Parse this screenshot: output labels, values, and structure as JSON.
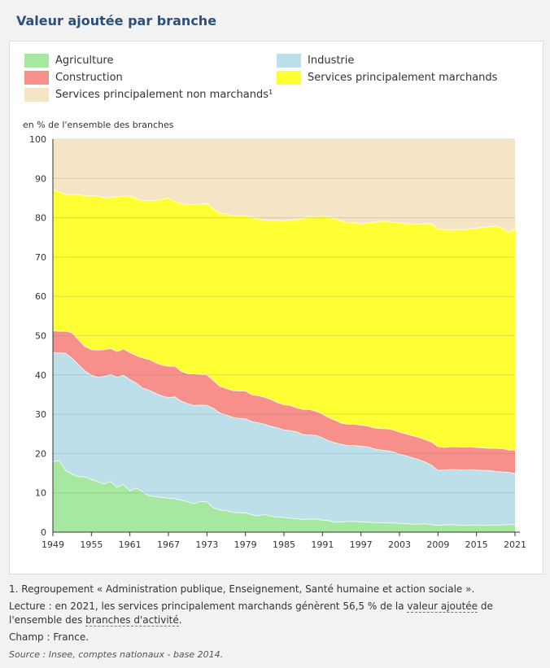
{
  "page": {
    "title": "Valeur ajoutée par branche"
  },
  "legend": [
    {
      "key": "agriculture",
      "label": "Agriculture",
      "color": "#a6e8a0"
    },
    {
      "key": "industrie",
      "label": "Industrie",
      "color": "#bddfe9"
    },
    {
      "key": "construction",
      "label": "Construction",
      "color": "#f7908a"
    },
    {
      "key": "services_marchands",
      "label": "Services principalement marchands",
      "color": "#ffff33"
    },
    {
      "key": "services_non_marchands",
      "label": "Services principalement non marchands¹",
      "color": "#f6e4c6"
    }
  ],
  "chart_data": {
    "type": "area",
    "stacked": true,
    "ylabel": "en % de l'ensemble des branches",
    "xlabel": "",
    "ylim": [
      0,
      100
    ],
    "yticks": [
      0,
      10,
      20,
      30,
      40,
      50,
      60,
      70,
      80,
      90,
      100
    ],
    "xlim": [
      1949,
      2021
    ],
    "xticks": [
      1949,
      1955,
      1961,
      1967,
      1973,
      1979,
      1985,
      1991,
      1997,
      2003,
      2009,
      2015,
      2021
    ],
    "grid": "horizontal",
    "legend_position": "top",
    "x": [
      1949,
      1950,
      1951,
      1952,
      1953,
      1954,
      1955,
      1956,
      1957,
      1958,
      1959,
      1960,
      1961,
      1962,
      1963,
      1964,
      1965,
      1966,
      1967,
      1968,
      1969,
      1970,
      1971,
      1972,
      1973,
      1974,
      1975,
      1976,
      1977,
      1978,
      1979,
      1980,
      1981,
      1982,
      1983,
      1984,
      1985,
      1986,
      1987,
      1988,
      1989,
      1990,
      1991,
      1992,
      1993,
      1994,
      1995,
      1996,
      1997,
      1998,
      1999,
      2000,
      2001,
      2002,
      2003,
      2004,
      2005,
      2006,
      2007,
      2008,
      2009,
      2010,
      2011,
      2012,
      2013,
      2014,
      2015,
      2016,
      2017,
      2018,
      2019,
      2020,
      2021
    ],
    "series": [
      {
        "name": "Agriculture",
        "values": [
          18.0,
          18.3,
          15.8,
          14.8,
          14.2,
          14.1,
          13.5,
          12.9,
          12.3,
          13.0,
          11.5,
          12.2,
          10.6,
          11.3,
          10.3,
          9.3,
          9.1,
          8.9,
          8.7,
          8.6,
          8.2,
          7.8,
          7.3,
          7.9,
          7.8,
          6.3,
          5.7,
          5.5,
          5.1,
          5.0,
          5.0,
          4.5,
          4.2,
          4.6,
          4.1,
          3.9,
          3.8,
          3.6,
          3.5,
          3.3,
          3.4,
          3.4,
          3.1,
          3.0,
          2.6,
          2.7,
          2.8,
          2.8,
          2.7,
          2.6,
          2.5,
          2.5,
          2.4,
          2.4,
          2.3,
          2.2,
          2.1,
          2.1,
          2.2,
          2.0,
          1.8,
          1.9,
          2.0,
          1.9,
          1.8,
          1.9,
          1.9,
          1.8,
          1.9,
          1.9,
          1.9,
          2.0,
          2.0
        ]
      },
      {
        "name": "Industrie",
        "values": [
          27.7,
          27.4,
          29.8,
          29.5,
          28.5,
          27.0,
          26.5,
          26.6,
          27.4,
          27.2,
          28.0,
          27.8,
          28.3,
          26.7,
          26.4,
          26.9,
          26.3,
          25.8,
          25.6,
          25.9,
          25.2,
          25.0,
          25.0,
          24.5,
          24.5,
          25.3,
          24.7,
          24.4,
          24.2,
          24.0,
          23.9,
          23.7,
          23.7,
          22.9,
          22.9,
          22.7,
          22.3,
          22.3,
          22.1,
          21.6,
          21.4,
          21.3,
          21.0,
          20.3,
          20.2,
          19.7,
          19.3,
          19.3,
          19.2,
          19.2,
          18.8,
          18.5,
          18.4,
          18.1,
          17.6,
          17.3,
          16.9,
          16.4,
          15.7,
          15.1,
          14.0,
          14.0,
          14.0,
          14.1,
          14.1,
          14.1,
          14.0,
          14.0,
          13.9,
          13.6,
          13.5,
          13.3,
          13.0
        ]
      },
      {
        "name": "Construction",
        "values": [
          5.6,
          5.5,
          5.6,
          6.5,
          6.3,
          6.2,
          6.5,
          6.9,
          6.8,
          6.6,
          6.5,
          6.7,
          6.9,
          7.0,
          7.7,
          7.8,
          7.8,
          7.9,
          8.0,
          7.8,
          7.6,
          7.6,
          8.0,
          7.8,
          7.8,
          7.1,
          6.8,
          6.7,
          6.8,
          7.0,
          7.1,
          6.8,
          6.9,
          6.9,
          6.8,
          6.4,
          6.4,
          6.4,
          6.1,
          6.4,
          6.5,
          6.1,
          6.0,
          5.9,
          5.7,
          5.4,
          5.4,
          5.4,
          5.4,
          5.3,
          5.3,
          5.4,
          5.6,
          5.6,
          5.6,
          5.6,
          5.6,
          5.7,
          5.7,
          5.9,
          6.0,
          5.7,
          5.8,
          5.8,
          5.8,
          5.8,
          5.7,
          5.7,
          5.6,
          5.9,
          5.9,
          5.7,
          5.9
        ]
      },
      {
        "name": "Services principalement marchands",
        "values": [
          36.0,
          35.5,
          34.8,
          35.2,
          37.0,
          38.4,
          39.2,
          39.2,
          38.7,
          38.5,
          39.4,
          38.9,
          39.7,
          40.0,
          40.0,
          40.5,
          41.3,
          42.2,
          42.8,
          42.0,
          42.7,
          43.0,
          43.2,
          43.3,
          43.6,
          43.7,
          44.0,
          44.5,
          44.5,
          44.6,
          44.6,
          45.1,
          45.0,
          45.0,
          45.7,
          46.4,
          46.8,
          47.2,
          47.9,
          48.7,
          49.1,
          49.5,
          50.4,
          51.0,
          51.4,
          51.5,
          51.3,
          51.3,
          51.2,
          51.7,
          52.3,
          52.8,
          52.8,
          52.8,
          53.3,
          53.5,
          53.8,
          54.2,
          55.0,
          55.6,
          55.4,
          55.5,
          55.2,
          55.3,
          55.3,
          55.5,
          55.8,
          56.2,
          56.4,
          56.6,
          56.2,
          55.3,
          56.5
        ]
      },
      {
        "name": "Services principalement non marchands¹",
        "values": [
          12.7,
          13.3,
          14.0,
          14.0,
          14.0,
          14.3,
          14.3,
          14.4,
          14.8,
          14.7,
          14.6,
          14.4,
          14.5,
          15.0,
          15.6,
          15.5,
          15.5,
          15.2,
          14.9,
          15.7,
          16.3,
          16.6,
          16.5,
          16.5,
          16.3,
          17.6,
          18.8,
          18.9,
          19.4,
          19.4,
          19.4,
          19.9,
          20.2,
          20.6,
          20.5,
          20.6,
          20.7,
          20.5,
          20.4,
          20.0,
          19.6,
          19.7,
          19.5,
          19.8,
          20.1,
          20.7,
          21.2,
          21.2,
          21.5,
          21.2,
          21.1,
          20.8,
          20.8,
          21.1,
          21.2,
          21.4,
          21.6,
          21.6,
          21.4,
          21.4,
          22.8,
          22.9,
          23.0,
          22.9,
          23.0,
          22.7,
          22.6,
          22.3,
          22.2,
          22.0,
          22.5,
          23.7,
          22.6
        ]
      }
    ]
  },
  "notes": {
    "note1": "1. Regroupement « Administration publique, Enseignement, Santé humaine et action sociale ».",
    "lecture_prefix": "Lecture : en 2021, les services principalement marchands génèrent 56,5 % de la ",
    "lecture_link1": "valeur ajoutée",
    "lecture_mid": " de l'ensemble des ",
    "lecture_link2": "branches d'activité",
    "lecture_suffix": ".",
    "champ": "Champ : France.",
    "source": "Source : Insee, comptes nationaux - base 2014."
  }
}
